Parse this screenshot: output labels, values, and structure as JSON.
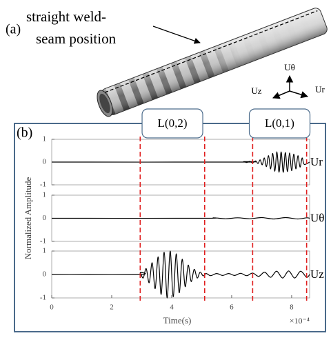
{
  "panel_a": "(a)",
  "annotation": [
    "straight weld-",
    "seam position"
  ],
  "axes_triad": {
    "up": "Uθ",
    "left": "Uz",
    "right": "Ur"
  },
  "panel_b": "(b)",
  "wave_windows": [
    {
      "label": "L(0,2)",
      "start": 2.95,
      "end": 5.1
    },
    {
      "label": "L(0,1)",
      "start": 6.7,
      "end": 8.5
    }
  ],
  "chart_data": [
    {
      "type": "line",
      "xlim": [
        0,
        8.6
      ],
      "ylim": [
        -1,
        1
      ],
      "yticks": [
        -1,
        0,
        1
      ],
      "x": [
        0,
        6.3,
        6.4,
        6.5,
        6.6,
        6.7,
        6.8,
        6.88,
        6.95,
        7.02,
        7.09,
        7.16,
        7.23,
        7.3,
        7.37,
        7.44,
        7.51,
        7.58,
        7.65,
        7.72,
        7.79,
        7.86,
        7.93,
        8.0,
        8.07,
        8.14,
        8.21,
        8.28,
        8.35,
        8.42,
        8.6
      ],
      "series": [
        {
          "name": "Ur",
          "color": "#000000",
          "values": [
            0,
            0,
            0.02,
            -0.02,
            0.03,
            -0.03,
            0.05,
            -0.06,
            0.1,
            -0.12,
            0.18,
            -0.2,
            0.28,
            -0.3,
            0.38,
            -0.4,
            0.45,
            -0.45,
            0.45,
            -0.45,
            0.42,
            -0.42,
            0.4,
            -0.38,
            0.35,
            -0.3,
            0.28,
            -0.22,
            0.18,
            -0.1,
            0
          ]
        }
      ]
    },
    {
      "type": "line",
      "xlim": [
        0,
        8.6
      ],
      "ylim": [
        -1,
        1
      ],
      "yticks": [
        -1,
        0,
        1
      ],
      "y_label": "Normalized Amplitude",
      "x": [
        0,
        5.0,
        5.4,
        5.8,
        6.2,
        6.6,
        7.0,
        7.4,
        7.8,
        8.2,
        8.5,
        8.6
      ],
      "series": [
        {
          "name": "Uθ",
          "color": "#000000",
          "values": [
            0,
            0,
            0.02,
            -0.02,
            0.02,
            -0.02,
            0.03,
            -0.03,
            0.03,
            -0.03,
            0.02,
            0
          ]
        }
      ]
    },
    {
      "type": "line",
      "xlim": [
        0,
        8.6
      ],
      "ylim": [
        -1,
        1
      ],
      "yticks": [
        -1,
        0,
        1
      ],
      "xticks": [
        0,
        2,
        4,
        6,
        8
      ],
      "x_label": "Time(s)",
      "x_multiplier": "×10⁻⁴",
      "x": [
        0,
        2.9,
        2.95,
        3.05,
        3.15,
        3.25,
        3.35,
        3.45,
        3.55,
        3.65,
        3.75,
        3.85,
        3.95,
        4.05,
        4.15,
        4.25,
        4.35,
        4.45,
        4.55,
        4.65,
        4.75,
        4.85,
        4.95,
        5.05,
        5.15,
        5.3,
        5.5,
        5.7,
        5.9,
        6.1,
        6.3,
        6.5,
        6.7,
        6.9,
        7.1,
        7.3,
        7.5,
        7.7,
        7.9,
        8.1,
        8.3,
        8.5,
        8.6
      ],
      "series": [
        {
          "name": "Uz",
          "color": "#000000",
          "values": [
            0,
            0,
            0.08,
            -0.15,
            0.25,
            -0.35,
            0.5,
            -0.6,
            0.75,
            -0.85,
            0.95,
            -1.0,
            1.0,
            -0.95,
            0.88,
            -0.78,
            0.65,
            -0.52,
            0.4,
            -0.3,
            0.22,
            -0.15,
            0.1,
            -0.06,
            0.04,
            -0.05,
            0.04,
            -0.04,
            0.04,
            -0.04,
            0.05,
            -0.05,
            0.06,
            -0.08,
            0.1,
            -0.12,
            0.14,
            -0.15,
            0.15,
            -0.15,
            0.14,
            -0.12,
            0
          ]
        }
      ]
    }
  ]
}
